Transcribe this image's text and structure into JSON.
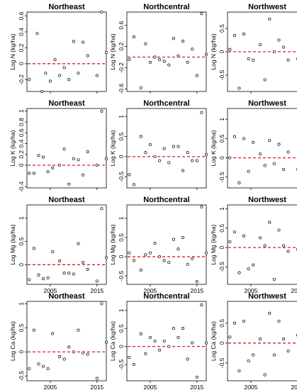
{
  "chart_data": {
    "type": "scatter",
    "layout": {
      "rows": 4,
      "cols": 3
    },
    "x_range": [
      2000,
      2017
    ],
    "x_ticks": [
      "2005",
      "2015"
    ],
    "x_ticks_per_row": [
      [],
      [],
      [
        "2005",
        "2015"
      ],
      [
        "2005",
        "2015"
      ]
    ],
    "reference_line": {
      "y": 0,
      "color": "#e41a1c",
      "style": "dashed"
    },
    "regions": [
      "Northeast",
      "Northcentral",
      "Northwest"
    ],
    "rows": [
      {
        "ylabel": "Log N (kg/ha)",
        "ylims": [
          [
            -0.35,
            0.65
          ],
          [
            -0.65,
            0.85
          ],
          [
            -0.85,
            0.85
          ]
        ],
        "yticks": [
          [
            -0.2,
            0.0,
            0.2,
            0.4,
            0.6
          ],
          [
            -0.6,
            -0.2,
            0.2,
            0.6
          ],
          [
            -0.5,
            0.0,
            0.5
          ]
        ],
        "panels": [
          {
            "title": "Northeast",
            "x": [
              2000.5,
              2002.2,
              2003.2,
              2004.0,
              2005.0,
              2006.0,
              2007.0,
              2008.0,
              2009.0,
              2010.0,
              2011.0,
              2012.0,
              2013.0,
              2015.0,
              2016.0,
              2017.0
            ],
            "y": [
              -0.2,
              0.38,
              -0.35,
              -0.12,
              -0.22,
              0.05,
              -0.15,
              -0.05,
              -0.2,
              0.28,
              -0.12,
              0.27,
              0.1,
              -0.15,
              0.65,
              0.14
            ]
          },
          {
            "title": "Northcentral",
            "x": [
              2000.5,
              2001.5,
              2003.0,
              2004.0,
              2005.0,
              2006.0,
              2007.0,
              2008.0,
              2009.0,
              2010.0,
              2011.0,
              2012.0,
              2013.0,
              2014.0,
              2015.0,
              2016.0,
              2017.0
            ],
            "y": [
              -0.05,
              0.38,
              -0.58,
              0.25,
              -0.1,
              0.0,
              -0.05,
              -0.08,
              -0.15,
              0.35,
              0.02,
              0.3,
              -0.1,
              0.15,
              -0.35,
              0.82,
              0.05
            ]
          },
          {
            "title": "Northwest",
            "x": [
              2000.5,
              2001.5,
              2002.5,
              2003.5,
              2004.5,
              2005.5,
              2007.0,
              2008.0,
              2009.0,
              2010.0,
              2011.0,
              2012.0,
              2013.0,
              2015.0,
              2016.0,
              2017.0
            ],
            "y": [
              0.05,
              0.35,
              -0.78,
              0.38,
              -0.15,
              -0.18,
              0.15,
              -0.6,
              0.7,
              0.0,
              0.25,
              0.1,
              -0.18,
              -0.15,
              0.82,
              -0.2
            ]
          }
        ]
      },
      {
        "ylabel": "Log K (kg/ha)",
        "ylims": [
          [
            -0.42,
            1.05
          ],
          [
            -0.78,
            1.2
          ],
          [
            -0.78,
            1.28
          ]
        ],
        "yticks": [
          [
            -0.4,
            0.0,
            0.2,
            0.4,
            0.6,
            0.8,
            1.0
          ],
          [
            -0.5,
            0.0,
            0.5,
            1.0
          ],
          [
            -0.5,
            0.0,
            0.5,
            1.0
          ]
        ],
        "panels": [
          {
            "title": "Northeast",
            "x": [
              2000.5,
              2001.5,
              2002.5,
              2003.5,
              2004.5,
              2005.5,
              2007.0,
              2008.0,
              2009.0,
              2010.0,
              2011.0,
              2012.0,
              2013.0,
              2015.0,
              2016.0,
              2017.0
            ],
            "y": [
              -0.15,
              -0.15,
              0.18,
              0.15,
              -0.12,
              -0.05,
              0.0,
              0.3,
              -0.35,
              0.12,
              0.1,
              -0.18,
              0.25,
              0.0,
              1.0,
              0.12
            ]
          },
          {
            "title": "Northcentral",
            "x": [
              2000.5,
              2001.5,
              2003.0,
              2004.0,
              2005.0,
              2006.0,
              2007.0,
              2008.0,
              2009.0,
              2010.0,
              2011.0,
              2012.0,
              2013.0,
              2014.0,
              2015.0,
              2016.0,
              2017.0
            ],
            "y": [
              -0.45,
              -0.7,
              0.5,
              0.1,
              0.3,
              0.0,
              -0.1,
              0.2,
              -0.15,
              0.25,
              0.25,
              -0.35,
              0.1,
              -0.1,
              -0.1,
              1.1,
              0.05
            ]
          },
          {
            "title": "Northwest",
            "x": [
              2000.5,
              2001.5,
              2002.5,
              2003.5,
              2004.5,
              2005.5,
              2007.0,
              2008.0,
              2009.0,
              2010.0,
              2011.0,
              2012.0,
              2013.0,
              2015.0,
              2016.0,
              2017.0
            ],
            "y": [
              0.0,
              0.55,
              -0.65,
              0.5,
              -0.35,
              0.4,
              0.1,
              -0.2,
              0.45,
              -0.15,
              0.35,
              -0.3,
              0.15,
              -0.3,
              1.25,
              -0.35
            ]
          }
        ]
      },
      {
        "ylabel": "Log Mg (kg/ha)",
        "ylims": [
          [
            -0.42,
            1.28
          ],
          [
            -0.72,
            1.35
          ],
          [
            -0.95,
            1.1
          ]
        ],
        "yticks": [
          [
            0.0,
            0.5,
            1.0
          ],
          [
            -0.5,
            0.0,
            0.5,
            1.0
          ],
          [
            -0.5,
            0.0,
            0.5,
            1.0
          ]
        ],
        "panels": [
          {
            "title": "Northeast",
            "x": [
              2000.5,
              2001.5,
              2002.5,
              2003.5,
              2004.5,
              2005.5,
              2007.0,
              2008.0,
              2009.0,
              2010.0,
              2011.0,
              2012.0,
              2013.0,
              2015.0,
              2016.0,
              2017.0
            ],
            "y": [
              -0.32,
              0.35,
              -0.22,
              -0.3,
              -0.28,
              0.28,
              0.08,
              -0.18,
              -0.18,
              -0.2,
              0.45,
              0.05,
              -0.1,
              -0.35,
              1.2,
              0.15
            ]
          },
          {
            "title": "Northcentral",
            "x": [
              2000.5,
              2001.5,
              2003.0,
              2004.0,
              2005.0,
              2006.0,
              2007.0,
              2008.0,
              2009.0,
              2010.0,
              2011.0,
              2012.0,
              2013.0,
              2014.0,
              2015.0,
              2016.0,
              2017.0
            ],
            "y": [
              0.1,
              -0.1,
              -0.35,
              0.05,
              0.1,
              0.35,
              0.0,
              -0.1,
              -0.15,
              0.45,
              0.2,
              0.5,
              -0.2,
              -0.05,
              -0.65,
              1.3,
              0.1
            ]
          },
          {
            "title": "Northwest",
            "x": [
              2000.5,
              2001.5,
              2002.5,
              2003.5,
              2004.5,
              2005.5,
              2007.0,
              2008.0,
              2009.0,
              2010.0,
              2011.0,
              2012.0,
              2013.0,
              2015.0,
              2016.0,
              2017.0
            ],
            "y": [
              0.15,
              0.4,
              -0.65,
              0.3,
              -0.55,
              -0.45,
              0.25,
              0.05,
              0.65,
              -0.82,
              0.45,
              0.05,
              -0.1,
              -0.05,
              1.0,
              -0.1
            ]
          }
        ]
      },
      {
        "ylabel": "Log Ca (kg/ha)",
        "ylims": [
          [
            -0.6,
            1.05
          ],
          [
            -0.95,
            1.25
          ],
          [
            -0.95,
            1.05
          ]
        ],
        "yticks": [
          [
            -0.5,
            0.0,
            0.5,
            1.0
          ],
          [
            -0.5,
            0.0,
            0.5,
            1.0
          ],
          [
            -0.5,
            0.0,
            0.5
          ]
        ],
        "panels": [
          {
            "title": "Northeast",
            "x": [
              2000.5,
              2001.5,
              2002.5,
              2003.5,
              2004.5,
              2005.5,
              2007.0,
              2008.0,
              2009.0,
              2010.0,
              2011.0,
              2012.0,
              2013.0,
              2015.0,
              2016.0,
              2017.0
            ],
            "y": [
              -0.35,
              0.45,
              -0.25,
              -0.3,
              -0.35,
              0.38,
              -0.1,
              -0.15,
              0.1,
              0.0,
              0.45,
              -0.02,
              -0.05,
              -0.55,
              1.0,
              0.2
            ]
          },
          {
            "title": "Northcentral",
            "x": [
              2000.5,
              2001.5,
              2003.0,
              2004.0,
              2005.0,
              2006.0,
              2007.0,
              2008.0,
              2009.0,
              2010.0,
              2011.0,
              2012.0,
              2013.0,
              2014.0,
              2015.0,
              2016.0,
              2017.0
            ],
            "y": [
              -0.3,
              -0.5,
              0.35,
              -0.2,
              0.25,
              0.15,
              -0.1,
              0.15,
              0.0,
              0.5,
              0.25,
              0.5,
              -0.35,
              0.1,
              -0.85,
              1.15,
              0.1
            ]
          },
          {
            "title": "Northwest",
            "x": [
              2000.5,
              2001.5,
              2002.5,
              2003.5,
              2004.5,
              2005.5,
              2007.0,
              2008.0,
              2009.0,
              2010.0,
              2011.0,
              2012.0,
              2013.0,
              2015.0,
              2016.0,
              2017.0
            ],
            "y": [
              0.15,
              0.5,
              -0.7,
              0.55,
              -0.45,
              -0.3,
              0.1,
              -0.8,
              0.75,
              -0.3,
              0.55,
              0.1,
              -0.2,
              0.2,
              0.85,
              -0.15
            ]
          }
        ]
      }
    ]
  }
}
